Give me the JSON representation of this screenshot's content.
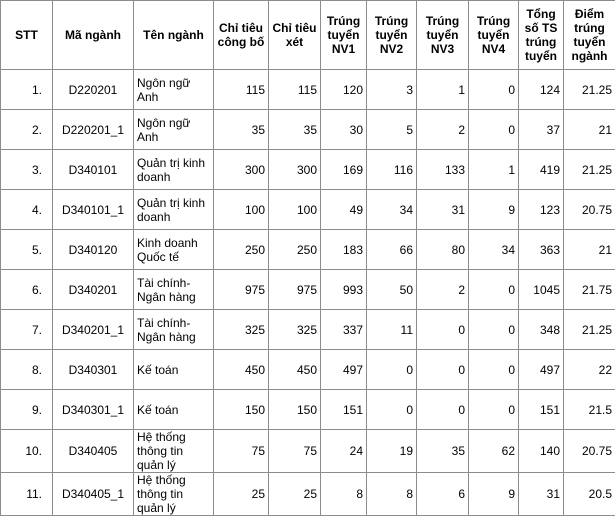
{
  "table": {
    "headers": [
      "STT",
      "Mã ngành",
      "Tên ngành",
      "Chỉ tiêu công bố",
      "Chỉ tiêu xét",
      "Trúng tuyển NV1",
      "Trúng tuyển NV2",
      "Trúng tuyển NV3",
      "Trúng tuyển NV4",
      "Tổng số TS trúng tuyển",
      "Điểm trúng tuyển ngành"
    ],
    "rows": [
      [
        "1.",
        "D220201",
        "Ngôn ngữ Anh",
        115,
        115,
        120,
        3,
        1,
        0,
        124,
        21.25
      ],
      [
        "2.",
        "D220201_1",
        "Ngôn ngữ Anh",
        35,
        35,
        30,
        5,
        2,
        0,
        37,
        21
      ],
      [
        "3.",
        "D340101",
        "Quản trị kinh doanh",
        300,
        300,
        169,
        116,
        133,
        1,
        419,
        21.25
      ],
      [
        "4.",
        "D340101_1",
        "Quản trị kinh doanh",
        100,
        100,
        49,
        34,
        31,
        9,
        123,
        20.75
      ],
      [
        "5.",
        "D340120",
        "Kinh doanh Quốc tế",
        250,
        250,
        183,
        66,
        80,
        34,
        363,
        21
      ],
      [
        "6.",
        "D340201",
        "Tài chính-Ngân hàng",
        975,
        975,
        993,
        50,
        2,
        0,
        1045,
        21.75
      ],
      [
        "7.",
        "D340201_1",
        "Tài chính-Ngân hàng",
        325,
        325,
        337,
        11,
        0,
        0,
        348,
        21.25
      ],
      [
        "8.",
        "D340301",
        "Kế toán",
        450,
        450,
        497,
        0,
        0,
        0,
        497,
        22
      ],
      [
        "9.",
        "D340301_1",
        "Kế toán",
        150,
        150,
        151,
        0,
        0,
        0,
        151,
        21.5
      ],
      [
        "10.",
        "D340405",
        "Hệ thống thông tin quản lý",
        75,
        75,
        24,
        19,
        35,
        62,
        140,
        20.75
      ],
      [
        "11.",
        "D340405_1",
        "Hệ thống thông tin quản lý",
        25,
        25,
        8,
        8,
        6,
        9,
        31,
        20.5
      ]
    ]
  }
}
